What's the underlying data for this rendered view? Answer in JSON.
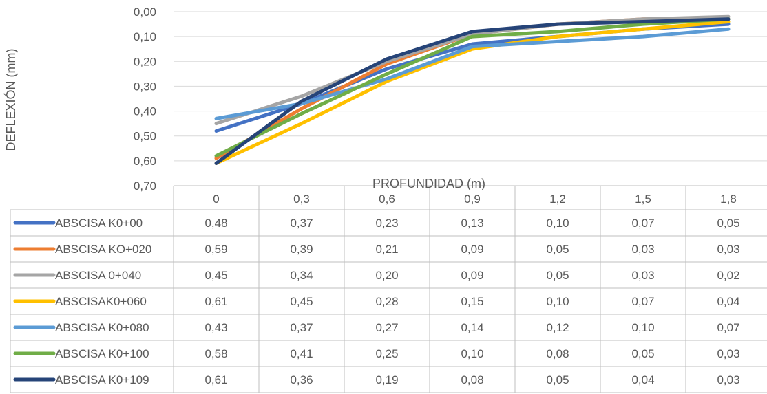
{
  "chart_data": {
    "type": "line",
    "title": "",
    "xlabel": "PROFUNDIDAD (m)",
    "ylabel": "DEFLEXIÓN (mm)",
    "categories": [
      "0",
      "0,3",
      "0,6",
      "0,9",
      "1,2",
      "1,5",
      "1,8"
    ],
    "y_axis": {
      "reversed": true,
      "min": 0,
      "max": 0.7,
      "ticks": [
        "0,00",
        "0,10",
        "0,20",
        "0,30",
        "0,40",
        "0,50",
        "0,60",
        "0,70"
      ]
    },
    "grid": true,
    "legend_placement": "data-table-left",
    "series": [
      {
        "name": "ABSCISA K0+00",
        "color": "#4472C4",
        "values": [
          0.48,
          0.37,
          0.23,
          0.13,
          0.1,
          0.07,
          0.05
        ],
        "labels": [
          "0,48",
          "0,37",
          "0,23",
          "0,13",
          "0,10",
          "0,07",
          "0,05"
        ]
      },
      {
        "name": "ABSCISA KO+020",
        "color": "#ED7D31",
        "values": [
          0.59,
          0.39,
          0.21,
          0.09,
          0.05,
          0.03,
          0.03
        ],
        "labels": [
          "0,59",
          "0,39",
          "0,21",
          "0,09",
          "0,05",
          "0,03",
          "0,03"
        ]
      },
      {
        "name": "ABSCISA 0+040",
        "color": "#A5A5A5",
        "values": [
          0.45,
          0.34,
          0.2,
          0.09,
          0.05,
          0.03,
          0.02
        ],
        "labels": [
          "0,45",
          "0,34",
          "0,20",
          "0,09",
          "0,05",
          "0,03",
          "0,02"
        ]
      },
      {
        "name": "ABSCISAK0+060",
        "color": "#FFC000",
        "values": [
          0.61,
          0.45,
          0.28,
          0.15,
          0.1,
          0.07,
          0.04
        ],
        "labels": [
          "0,61",
          "0,45",
          "0,28",
          "0,15",
          "0,10",
          "0,07",
          "0,04"
        ]
      },
      {
        "name": "ABSCISA K0+080",
        "color": "#5B9BD5",
        "values": [
          0.43,
          0.37,
          0.27,
          0.14,
          0.12,
          0.1,
          0.07
        ],
        "labels": [
          "0,43",
          "0,37",
          "0,27",
          "0,14",
          "0,12",
          "0,10",
          "0,07"
        ]
      },
      {
        "name": "ABSCISA K0+100",
        "color": "#70AD47",
        "values": [
          0.58,
          0.41,
          0.25,
          0.1,
          0.08,
          0.05,
          0.03
        ],
        "labels": [
          "0,58",
          "0,41",
          "0,25",
          "0,10",
          "0,08",
          "0,05",
          "0,03"
        ]
      },
      {
        "name": "ABSCISA K0+109",
        "color": "#264478",
        "values": [
          0.61,
          0.36,
          0.19,
          0.08,
          0.05,
          0.04,
          0.03
        ],
        "labels": [
          "0,61",
          "0,36",
          "0,19",
          "0,08",
          "0,05",
          "0,04",
          "0,03"
        ]
      }
    ]
  }
}
